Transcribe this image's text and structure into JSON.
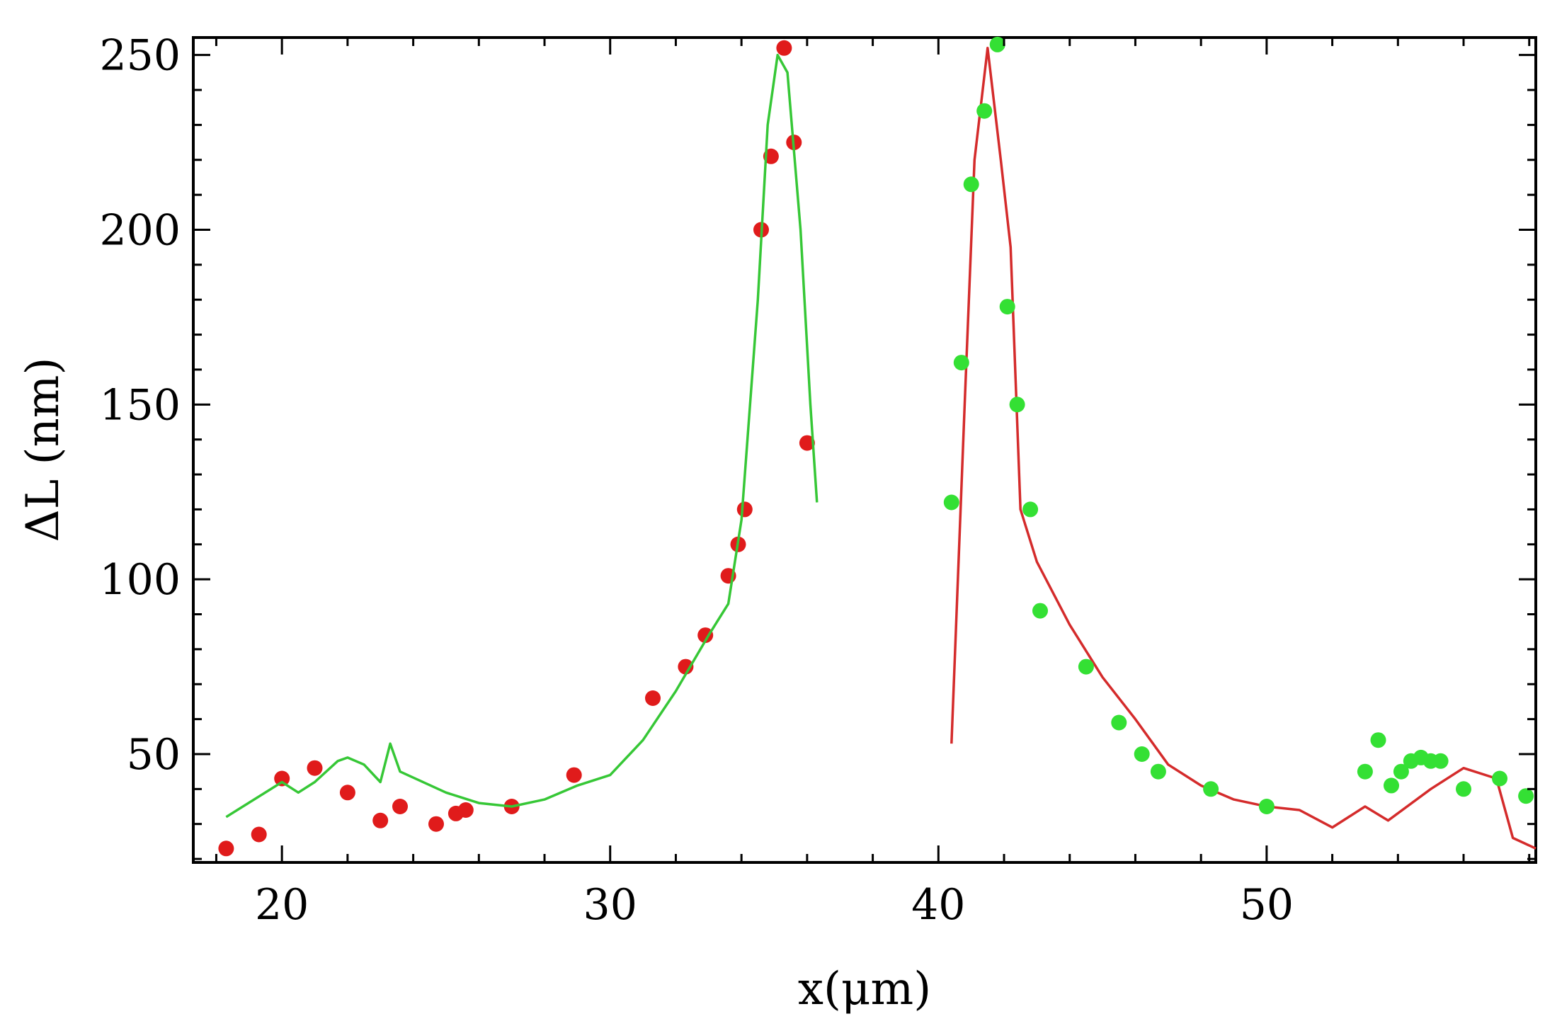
{
  "chart_data": {
    "type": "scatter",
    "xlabel": "x(μm)",
    "ylabel": "ΔL (nm)",
    "xlim": [
      17.3,
      58.2
    ],
    "ylim": [
      19,
      255
    ],
    "x_ticks": [
      20,
      30,
      40,
      50
    ],
    "y_ticks": [
      50,
      100,
      150,
      200,
      250
    ],
    "grid": false,
    "series": [
      {
        "kind": "points",
        "color": "#e01b1b",
        "points": [
          [
            18.3,
            23
          ],
          [
            19.3,
            27
          ],
          [
            20.0,
            43
          ],
          [
            21.0,
            46
          ],
          [
            22.0,
            39
          ],
          [
            23.0,
            31
          ],
          [
            23.6,
            35
          ],
          [
            24.7,
            30
          ],
          [
            25.3,
            33
          ],
          [
            25.6,
            34
          ],
          [
            27.0,
            35
          ],
          [
            28.9,
            44
          ],
          [
            31.3,
            66
          ],
          [
            32.3,
            75
          ],
          [
            32.9,
            84
          ],
          [
            33.6,
            101
          ],
          [
            33.9,
            110
          ],
          [
            34.1,
            120
          ],
          [
            34.6,
            200
          ],
          [
            34.9,
            221
          ],
          [
            35.3,
            252
          ],
          [
            35.6,
            225
          ],
          [
            36.0,
            139
          ]
        ]
      },
      {
        "kind": "line",
        "color": "#36c736",
        "points": [
          [
            18.3,
            32
          ],
          [
            20.0,
            42
          ],
          [
            20.5,
            39
          ],
          [
            21.0,
            42
          ],
          [
            21.7,
            48
          ],
          [
            22.0,
            49
          ],
          [
            22.5,
            47
          ],
          [
            23.0,
            42
          ],
          [
            23.3,
            53
          ],
          [
            23.6,
            45
          ],
          [
            25.0,
            39
          ],
          [
            26.0,
            36
          ],
          [
            27.0,
            35
          ],
          [
            28.0,
            37
          ],
          [
            29.0,
            41
          ],
          [
            30.0,
            44
          ],
          [
            31.0,
            54
          ],
          [
            32.0,
            68
          ],
          [
            33.0,
            84
          ],
          [
            33.6,
            93
          ],
          [
            34.0,
            117
          ],
          [
            34.5,
            180
          ],
          [
            34.8,
            230
          ],
          [
            35.1,
            250
          ],
          [
            35.4,
            245
          ],
          [
            35.8,
            200
          ],
          [
            36.1,
            150
          ],
          [
            36.3,
            122
          ]
        ]
      },
      {
        "kind": "line",
        "color": "#d42b2b",
        "points": [
          [
            40.4,
            53
          ],
          [
            40.8,
            150
          ],
          [
            41.1,
            220
          ],
          [
            41.5,
            252
          ],
          [
            41.9,
            220
          ],
          [
            42.2,
            195
          ],
          [
            42.5,
            120
          ],
          [
            43.0,
            105
          ],
          [
            44.0,
            87
          ],
          [
            45.0,
            72
          ],
          [
            46.0,
            60
          ],
          [
            47.0,
            47
          ],
          [
            48.0,
            41
          ],
          [
            49.0,
            37
          ],
          [
            50.0,
            35
          ],
          [
            51.0,
            34
          ],
          [
            52.0,
            29
          ],
          [
            53.0,
            35
          ],
          [
            53.7,
            31
          ],
          [
            55.0,
            40
          ],
          [
            56.0,
            46
          ],
          [
            57.0,
            43
          ],
          [
            57.5,
            26
          ],
          [
            58.2,
            23
          ]
        ]
      },
      {
        "kind": "points",
        "color": "#34e034",
        "points": [
          [
            40.4,
            122
          ],
          [
            40.7,
            162
          ],
          [
            41.0,
            213
          ],
          [
            41.4,
            234
          ],
          [
            41.8,
            253
          ],
          [
            42.1,
            178
          ],
          [
            42.4,
            150
          ],
          [
            42.8,
            120
          ],
          [
            43.1,
            91
          ],
          [
            44.5,
            75
          ],
          [
            45.5,
            59
          ],
          [
            46.2,
            50
          ],
          [
            46.7,
            45
          ],
          [
            48.3,
            40
          ],
          [
            50.0,
            35
          ],
          [
            53.0,
            45
          ],
          [
            53.4,
            54
          ],
          [
            53.8,
            41
          ],
          [
            54.1,
            45
          ],
          [
            54.4,
            48
          ],
          [
            54.7,
            49
          ],
          [
            55.0,
            48
          ],
          [
            55.3,
            48
          ],
          [
            56.0,
            40
          ],
          [
            57.1,
            43
          ],
          [
            57.9,
            38
          ]
        ]
      }
    ]
  }
}
